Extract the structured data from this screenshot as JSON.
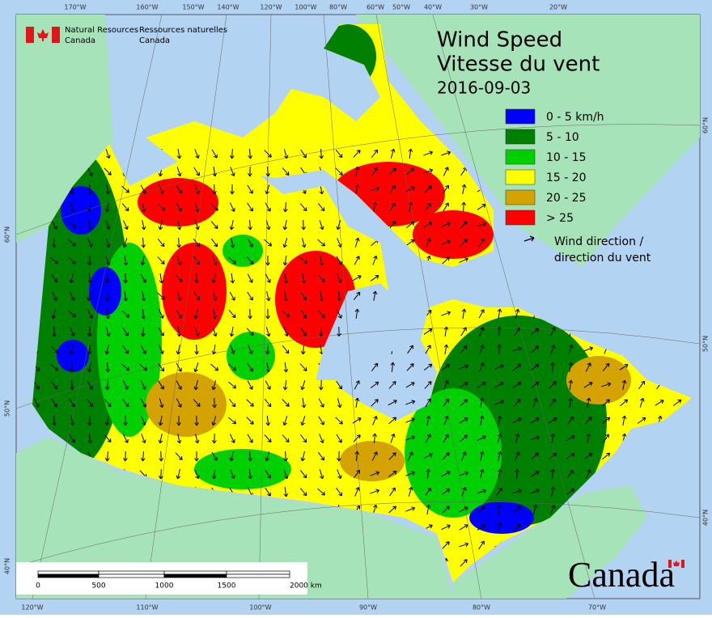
{
  "header": {
    "agency_en": [
      "Natural Resources",
      "Canada"
    ],
    "agency_fr": [
      "Ressources naturelles",
      "Canada"
    ]
  },
  "title": {
    "line1": "Wind Speed",
    "line2": "Vitesse du vent",
    "date": "2016-09-03"
  },
  "legend": {
    "items": [
      {
        "label": "0 - 5 km/h",
        "color": "#0000ff"
      },
      {
        "label": "5 - 10",
        "color": "#008000"
      },
      {
        "label": "10 - 15",
        "color": "#00d000"
      },
      {
        "label": "15 - 20",
        "color": "#ffff00"
      },
      {
        "label": "20 - 25",
        "color": "#d4a300"
      },
      {
        "label": "> 25",
        "color": "#ff0000"
      }
    ],
    "arrow_label": [
      "Wind direction /",
      "direction du vent"
    ]
  },
  "graticule": {
    "top": [
      "170°W",
      "160°W",
      "150°W",
      "140°W",
      "120°W",
      "100°W",
      "80°W",
      "60°W",
      "50°W",
      "40°W",
      "30°W",
      "20°W"
    ],
    "bottom": [
      "120°W",
      "110°W",
      "100°W",
      "90°W",
      "80°W",
      "70°W"
    ],
    "left": [
      "60°N",
      "50°N",
      "40°N"
    ],
    "right": [
      "60°N",
      "50°N",
      "40°N"
    ]
  },
  "scale_bar": {
    "labels": [
      "0",
      "500",
      "1000",
      "1500",
      "2000 km"
    ]
  },
  "wordmark": "Canada"
}
